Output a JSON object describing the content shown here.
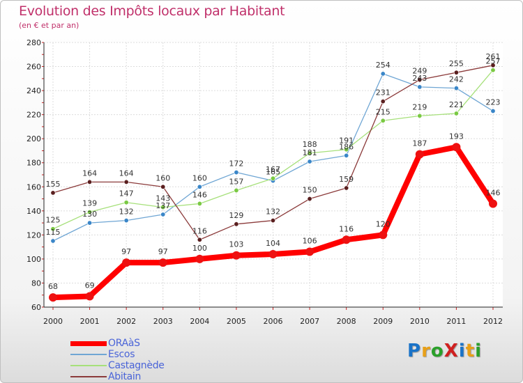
{
  "title": "Evolution des Impôts locaux par Habitant",
  "subtitle": "(en € et par an)",
  "logo": {
    "text": "ProXiti",
    "letters": [
      {
        "ch": "P",
        "color": "#1a73c8"
      },
      {
        "ch": "r",
        "color": "#e8a018"
      },
      {
        "ch": "o",
        "color": "#2aa02a"
      },
      {
        "ch": "X",
        "color": "#d02020"
      },
      {
        "ch": "i",
        "color": "#1a73c8"
      },
      {
        "ch": "t",
        "color": "#e8a018"
      },
      {
        "ch": "i",
        "color": "#2aa02a"
      }
    ]
  },
  "chart_data": {
    "type": "line",
    "title": "Evolution des Impôts locaux par Habitant",
    "subtitle": "(en € et par an)",
    "x": [
      "2000",
      "2001",
      "2002",
      "2003",
      "2004",
      "2005",
      "2006",
      "2007",
      "2008",
      "2009",
      "2010",
      "2011",
      "2012"
    ],
    "ylim": [
      60,
      280
    ],
    "yticks": [
      "60",
      "80",
      "100",
      "120",
      "140",
      "160",
      "180",
      "200",
      "220",
      "240",
      "260",
      "280"
    ],
    "grid": true,
    "legend_position": "bottom-left",
    "series": [
      {
        "name": "ORAàS",
        "color": "#ff0000",
        "marker": "#ee1111",
        "bold": true,
        "values": [
          68,
          69,
          97,
          97,
          100,
          103,
          104,
          106,
          116,
          120,
          187,
          193,
          146
        ],
        "labels": [
          "68",
          "69",
          "97",
          "97",
          "100",
          "103",
          "104",
          "106",
          "116",
          "120",
          "187",
          "193",
          "146"
        ]
      },
      {
        "name": "Escos",
        "color": "#6fa6d4",
        "marker": "#3a86c8",
        "bold": false,
        "values": [
          115,
          130,
          132,
          137,
          160,
          172,
          165,
          181,
          186,
          254,
          243,
          242,
          223
        ],
        "labels": [
          "115",
          "130",
          "132",
          "137",
          "160",
          "172",
          "165",
          "181",
          "186",
          "254",
          "243",
          "242",
          "223"
        ]
      },
      {
        "name": "Castagnède",
        "color": "#a6e07a",
        "marker": "#7ac943",
        "bold": false,
        "values": [
          125,
          139,
          147,
          143,
          146,
          157,
          167,
          188,
          191,
          215,
          219,
          221,
          257
        ],
        "labels": [
          "125",
          "139",
          "147",
          "143",
          "146",
          "157",
          "167",
          "188",
          "191",
          "215",
          "219",
          "221",
          "257"
        ]
      },
      {
        "name": "Abitain",
        "color": "#8b3a3a",
        "marker": "#5a1f1f",
        "bold": false,
        "values": [
          155,
          164,
          164,
          160,
          116,
          129,
          132,
          150,
          159,
          231,
          249,
          255,
          261
        ],
        "labels": [
          "155",
          "164",
          "164",
          "160",
          "116",
          "129",
          "132",
          "150",
          "159",
          "231",
          "249",
          "255",
          "261"
        ]
      }
    ]
  }
}
